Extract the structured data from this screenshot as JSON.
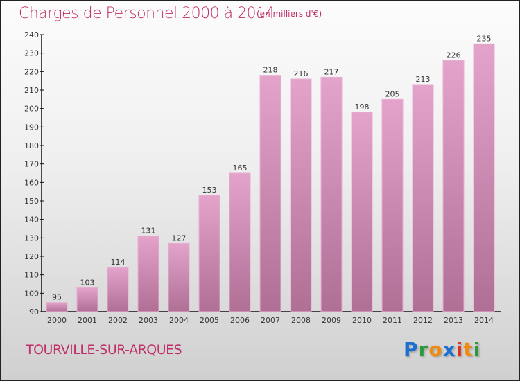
{
  "chart_data": {
    "type": "bar",
    "title": "Charges de Personnel 2000 à 2014",
    "subtitle": "(en milliers d'€)",
    "xlabel": "",
    "ylabel": "",
    "categories": [
      "2000",
      "2001",
      "2002",
      "2003",
      "2004",
      "2005",
      "2006",
      "2007",
      "2008",
      "2009",
      "2010",
      "2011",
      "2012",
      "2013",
      "2014"
    ],
    "values": [
      95,
      103,
      114,
      131,
      127,
      153,
      165,
      218,
      216,
      217,
      198,
      205,
      213,
      226,
      235
    ],
    "ylim": [
      90,
      240
    ],
    "yticks": [
      90,
      100,
      110,
      120,
      130,
      140,
      150,
      160,
      170,
      180,
      190,
      200,
      210,
      220,
      230,
      240
    ],
    "grid": false,
    "bar_color": "#d98fb8"
  },
  "footer": {
    "city": "TOURVILLE-SUR-ARQUES",
    "logo": "Proxiti"
  },
  "colors": {
    "title": "#c0306a"
  }
}
